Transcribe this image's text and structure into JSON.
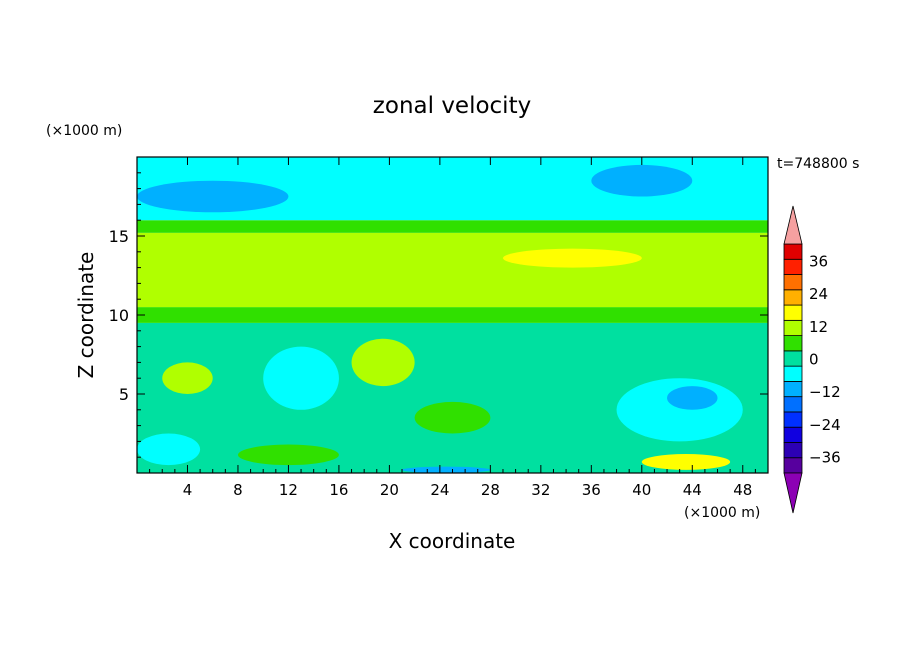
{
  "chart_data": {
    "type": "heatmap",
    "title": "zonal velocity",
    "xlabel": "X coordinate",
    "ylabel": "Z coordinate",
    "x_unit": "(×1000 m)",
    "y_unit": "(×1000 m)",
    "time_label": "t=748800 s",
    "xlim": [
      0,
      50
    ],
    "ylim": [
      0,
      20
    ],
    "x_ticks": [
      4,
      8,
      12,
      16,
      20,
      24,
      28,
      32,
      36,
      40,
      44,
      48
    ],
    "y_ticks": [
      5,
      10,
      15
    ],
    "colorbar": {
      "levels": [
        -42,
        -36,
        -30,
        -24,
        -18,
        -12,
        -6,
        0,
        6,
        12,
        18,
        24,
        30,
        36,
        42
      ],
      "tick_labels": [
        36,
        24,
        12,
        0,
        -12,
        -24,
        -36
      ],
      "colors": [
        "#57009e",
        "#2c00b4",
        "#1000e0",
        "#0030ff",
        "#0070ff",
        "#00b0ff",
        "#00ffff",
        "#00e0a0",
        "#30e000",
        "#b0ff00",
        "#ffff00",
        "#ffb000",
        "#ff7000",
        "#ff2000",
        "#e00000"
      ],
      "extend_low_color": "#8c00b4",
      "extend_high_color": "#f5a0a0"
    },
    "regions": [
      {
        "level": 0,
        "x": [
          0,
          50
        ],
        "z": [
          0,
          9.5
        ]
      },
      {
        "level": 6,
        "x": [
          0,
          50
        ],
        "z": [
          9.5,
          10.5
        ]
      },
      {
        "level": 12,
        "x": [
          0,
          50
        ],
        "z": [
          10.5,
          15.2
        ]
      },
      {
        "level": 6,
        "x": [
          0,
          50
        ],
        "z": [
          15.2,
          16
        ]
      },
      {
        "level": -6,
        "x": [
          0,
          50
        ],
        "z": [
          16,
          20
        ]
      },
      {
        "level": -12,
        "x": [
          0,
          12
        ],
        "z": [
          16.5,
          18.5
        ]
      },
      {
        "level": -12,
        "x": [
          36,
          44
        ],
        "z": [
          17.5,
          19.5
        ]
      },
      {
        "level": 18,
        "x": [
          29,
          40
        ],
        "z": [
          13,
          14.2
        ]
      },
      {
        "level": 18,
        "x": [
          40,
          47
        ],
        "z": [
          0.2,
          1.2
        ]
      },
      {
        "level": 12,
        "x": [
          17,
          22
        ],
        "z": [
          5.5,
          8.5
        ]
      },
      {
        "level": 12,
        "x": [
          2,
          6
        ],
        "z": [
          5,
          7
        ]
      },
      {
        "level": -6,
        "x": [
          10,
          16
        ],
        "z": [
          4,
          8
        ]
      },
      {
        "level": -6,
        "x": [
          38,
          48
        ],
        "z": [
          2,
          6
        ]
      },
      {
        "level": -12,
        "x": [
          42,
          46
        ],
        "z": [
          4,
          5.5
        ]
      },
      {
        "level": -6,
        "x": [
          0,
          5
        ],
        "z": [
          0.5,
          2.5
        ]
      },
      {
        "level": -12,
        "x": [
          21,
          28
        ],
        "z": [
          0,
          0.4
        ]
      },
      {
        "level": 6,
        "x": [
          22,
          28
        ],
        "z": [
          2.5,
          4.5
        ]
      },
      {
        "level": 6,
        "x": [
          8,
          16
        ],
        "z": [
          0.5,
          1.8
        ]
      }
    ]
  }
}
